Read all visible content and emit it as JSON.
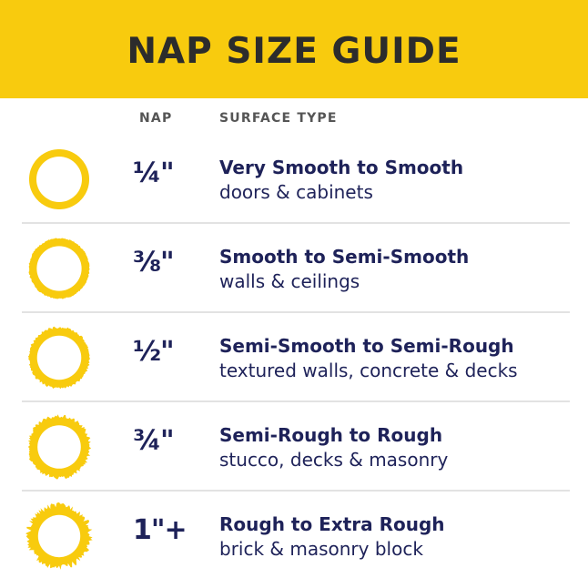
{
  "title": "NAP SIZE GUIDE",
  "columns": {
    "nap": "NAP",
    "surface": "SURFACE TYPE"
  },
  "colors": {
    "accent": "#F8CB0E",
    "text": "#1E2259"
  },
  "rows": [
    {
      "nap": "¼\"",
      "surface": "Very Smooth to Smooth",
      "uses": "doors & cabinets",
      "icon": "smooth-ring-icon"
    },
    {
      "nap": "⅜\"",
      "surface": "Smooth to Semi-Smooth",
      "uses": "walls & ceilings",
      "icon": "slightly-fuzzy-ring-icon"
    },
    {
      "nap": "½\"",
      "surface": "Semi-Smooth to Semi-Rough",
      "uses": "textured walls, concrete & decks",
      "icon": "fuzzy-ring-icon"
    },
    {
      "nap": "¾\"",
      "surface": "Semi-Rough to Rough",
      "uses": "stucco, decks & masonry",
      "icon": "rough-ring-icon"
    },
    {
      "nap": "1\"+",
      "surface": "Rough to Extra Rough",
      "uses": "brick & masonry block",
      "icon": "extra-rough-ring-icon"
    }
  ]
}
